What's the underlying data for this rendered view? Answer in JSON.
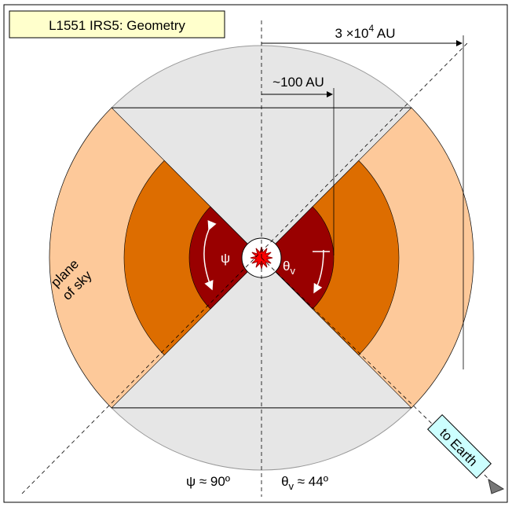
{
  "title": "L1551 IRS5: Geometry",
  "scale_large": {
    "text": "3 ×10",
    "sup": "4",
    "unit": " AU"
  },
  "scale_small": "~100 AU",
  "cone_labels": {
    "psi": "ψ",
    "theta": "θ",
    "theta_sub": "v"
  },
  "plane_of_sky": [
    "plane",
    "of sky"
  ],
  "to_earth": "to Earth",
  "angles": {
    "psi": "ψ ≈ 90º",
    "theta": "θ",
    "theta_sub": "v",
    "theta_rest": " ≈ 44º"
  }
}
